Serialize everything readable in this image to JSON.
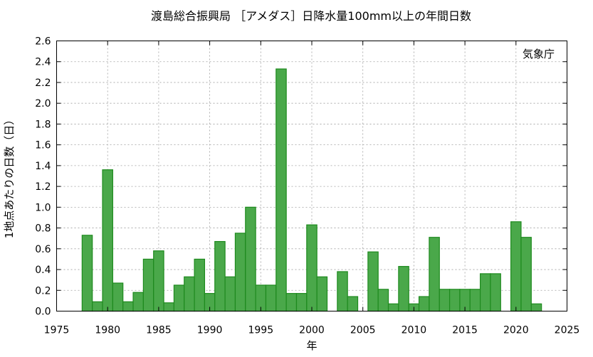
{
  "chart_data": {
    "type": "bar",
    "title": "渡島総合振興局 ［アメダス］日降水量100mm以上の年間日数",
    "xlabel": "年",
    "ylabel": "1地点あたりの日数（日）",
    "annotation": "気象庁",
    "xlim": [
      1975,
      2025
    ],
    "ylim": [
      0,
      2.6
    ],
    "x_ticks": [
      1975,
      1980,
      1985,
      1990,
      1995,
      2000,
      2005,
      2010,
      2015,
      2020,
      2025
    ],
    "y_ticks": [
      0.0,
      0.2,
      0.4,
      0.6,
      0.8,
      1.0,
      1.2,
      1.4,
      1.6,
      1.8,
      2.0,
      2.2,
      2.4,
      2.6
    ],
    "y_tick_labels": [
      "0.0",
      "0.2",
      "0.4",
      "0.6",
      "0.8",
      "1.0",
      "1.2",
      "1.4",
      "1.6",
      "1.8",
      "2.0",
      "2.2",
      "2.4",
      "2.6"
    ],
    "grid": true,
    "bar_fill_color": "#4aa84a",
    "bar_edge_color": "#1e8a1e",
    "x": [
      1978,
      1979,
      1980,
      1981,
      1982,
      1983,
      1984,
      1985,
      1986,
      1987,
      1988,
      1989,
      1990,
      1991,
      1992,
      1993,
      1994,
      1995,
      1996,
      1997,
      1998,
      1999,
      2000,
      2001,
      2002,
      2003,
      2004,
      2005,
      2006,
      2007,
      2008,
      2009,
      2010,
      2011,
      2012,
      2013,
      2014,
      2015,
      2016,
      2017,
      2018,
      2019,
      2020,
      2021,
      2022,
      2023
    ],
    "values": [
      0.73,
      0.09,
      1.36,
      0.27,
      0.09,
      0.18,
      0.5,
      0.58,
      0.08,
      0.25,
      0.33,
      0.5,
      0.17,
      0.67,
      0.33,
      0.75,
      1.0,
      0.25,
      0.25,
      2.33,
      0.17,
      0.17,
      0.83,
      0.33,
      0.0,
      0.38,
      0.14,
      0.0,
      0.57,
      0.21,
      0.07,
      0.43,
      0.07,
      0.14,
      0.71,
      0.21,
      0.21,
      0.21,
      0.21,
      0.36,
      0.36,
      0.0,
      0.86,
      0.71,
      0.07,
      0.0
    ]
  }
}
